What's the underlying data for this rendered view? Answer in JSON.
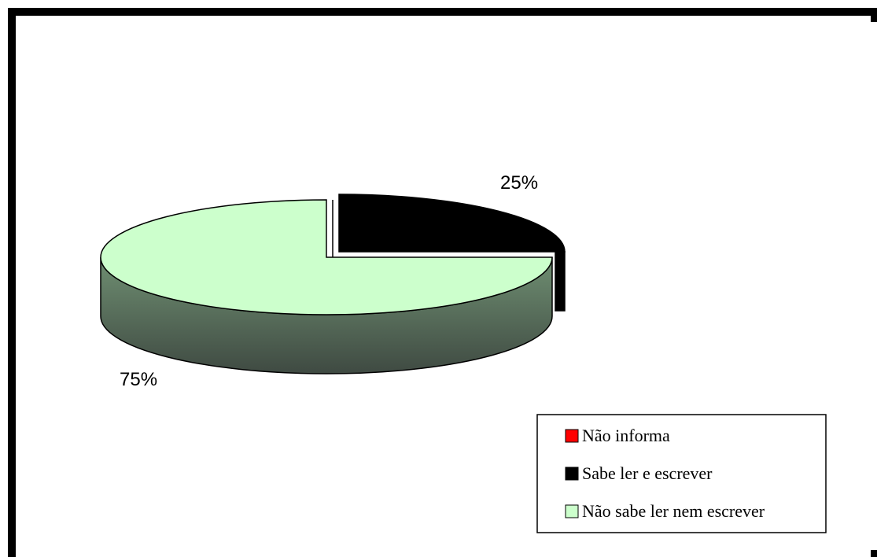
{
  "chart_data": {
    "type": "pie",
    "style": "3d",
    "categories": [
      "Não informa",
      "Sabe ler e escrever",
      "Não sabe ler nem escrever"
    ],
    "values": [
      0,
      25,
      75
    ],
    "colors": [
      "#ff0000",
      "#000000",
      "#ccffcc"
    ],
    "data_labels": [
      "",
      "25%",
      "75%"
    ],
    "legend": {
      "position": "bottom-right",
      "entries": [
        {
          "label": "Não informa",
          "color": "#ff0000"
        },
        {
          "label": "Sabe ler e escrever",
          "color": "#000000"
        },
        {
          "label": "Não sabe ler nem escrever",
          "color": "#ccffcc"
        }
      ]
    }
  }
}
